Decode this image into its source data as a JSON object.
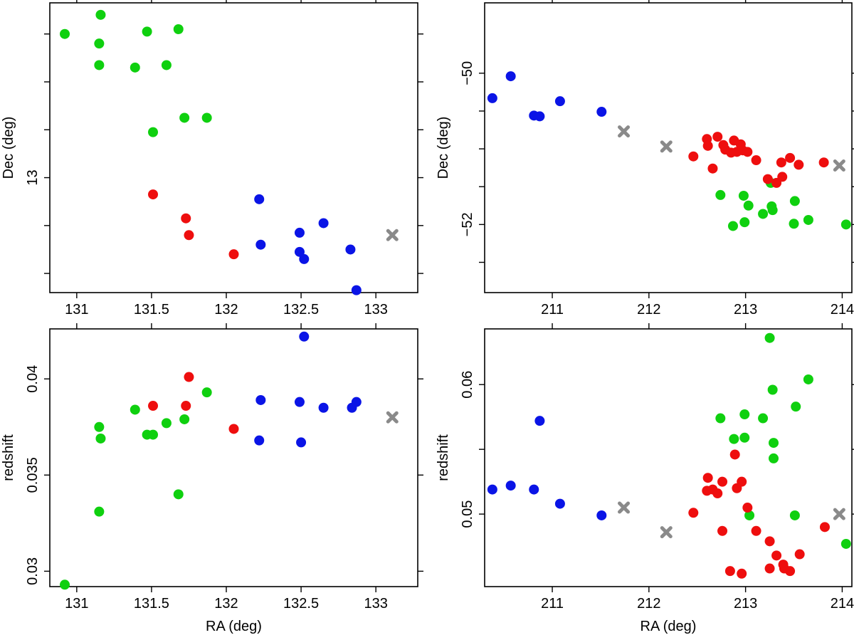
{
  "colors": {
    "blue": "#0a14e6",
    "green": "#0fd00f",
    "red": "#ee0e0e",
    "gray": "#8a8a8a"
  },
  "chart_data": [
    {
      "type": "scatter",
      "xlabel": "",
      "ylabel": "Dec (deg)",
      "xlim": [
        130.82,
        133.28
      ],
      "ylim": [
        12.52,
        13.73
      ],
      "xticks": [
        131,
        131.5,
        132,
        132.5,
        133
      ],
      "xtick_labels": [
        "131",
        "131.5",
        "132",
        "132.5",
        "133"
      ],
      "yticks": [
        12.6,
        12.8,
        13.0,
        13.2,
        13.4,
        13.6
      ],
      "ytick_labels": [
        "",
        "",
        "13",
        "",
        "",
        ""
      ],
      "series": [
        {
          "color": "blue",
          "marker": "circle",
          "points": [
            [
              132.22,
              12.91
            ],
            [
              132.23,
              12.72
            ],
            [
              132.49,
              12.77
            ],
            [
              132.49,
              12.69
            ],
            [
              132.52,
              12.66
            ],
            [
              132.65,
              12.81
            ],
            [
              132.83,
              12.7
            ],
            [
              132.87,
              12.53
            ]
          ]
        },
        {
          "color": "green",
          "marker": "circle",
          "points": [
            [
              130.92,
              13.6
            ],
            [
              131.16,
              13.68
            ],
            [
              131.15,
              13.56
            ],
            [
              131.15,
              13.47
            ],
            [
              131.39,
              13.46
            ],
            [
              131.47,
              13.61
            ],
            [
              131.6,
              13.47
            ],
            [
              131.68,
              13.62
            ],
            [
              131.72,
              13.25
            ],
            [
              131.87,
              13.25
            ],
            [
              131.51,
              13.19
            ]
          ]
        },
        {
          "color": "red",
          "marker": "circle",
          "points": [
            [
              131.51,
              12.93
            ],
            [
              131.73,
              12.83
            ],
            [
              131.75,
              12.76
            ],
            [
              132.05,
              12.68
            ]
          ]
        },
        {
          "color": "gray",
          "marker": "x",
          "points": [
            [
              133.11,
              12.76
            ]
          ]
        }
      ]
    },
    {
      "type": "scatter",
      "xlabel": "",
      "ylabel": "Dec (deg)",
      "xlim": [
        210.3,
        214.1
      ],
      "ylim": [
        -52.9,
        -49.07
      ],
      "xticks": [
        211,
        212,
        213,
        214
      ],
      "xtick_labels": [
        "211",
        "212",
        "213",
        "214"
      ],
      "yticks": [
        -50,
        -50.5,
        -51,
        -51.5,
        -52,
        -52.5
      ],
      "ytick_labels": [
        "−50",
        "",
        "",
        "",
        "−52",
        ""
      ],
      "series": [
        {
          "color": "blue",
          "marker": "circle",
          "points": [
            [
              210.38,
              -50.33
            ],
            [
              210.57,
              -50.04
            ],
            [
              210.81,
              -50.56
            ],
            [
              210.87,
              -50.57
            ],
            [
              211.08,
              -50.37
            ],
            [
              211.51,
              -50.51
            ]
          ]
        },
        {
          "color": "green",
          "marker": "circle",
          "points": [
            [
              212.74,
              -51.61
            ],
            [
              212.98,
              -51.62
            ],
            [
              213.03,
              -51.75
            ],
            [
              213.18,
              -51.86
            ],
            [
              213.27,
              -51.76
            ],
            [
              213.28,
              -51.81
            ],
            [
              213.26,
              -51.45
            ],
            [
              213.51,
              -51.69
            ],
            [
              212.87,
              -52.02
            ],
            [
              212.99,
              -51.97
            ],
            [
              213.5,
              -51.99
            ],
            [
              213.65,
              -51.94
            ],
            [
              214.04,
              -52.0
            ]
          ]
        },
        {
          "color": "red",
          "marker": "circle",
          "points": [
            [
              212.46,
              -51.1
            ],
            [
              212.6,
              -50.87
            ],
            [
              212.61,
              -50.96
            ],
            [
              212.66,
              -51.26
            ],
            [
              212.71,
              -50.84
            ],
            [
              212.77,
              -50.95
            ],
            [
              212.79,
              -51.01
            ],
            [
              212.85,
              -51.05
            ],
            [
              212.88,
              -50.89
            ],
            [
              212.91,
              -51.04
            ],
            [
              212.95,
              -50.94
            ],
            [
              212.97,
              -51.02
            ],
            [
              213.02,
              -51.04
            ],
            [
              213.11,
              -51.15
            ],
            [
              213.23,
              -51.4
            ],
            [
              213.32,
              -51.45
            ],
            [
              213.38,
              -51.37
            ],
            [
              213.37,
              -51.18
            ],
            [
              213.46,
              -51.12
            ],
            [
              213.55,
              -51.21
            ],
            [
              213.81,
              -51.18
            ]
          ]
        },
        {
          "color": "gray",
          "marker": "x",
          "points": [
            [
              211.74,
              -50.77
            ],
            [
              212.18,
              -50.97
            ],
            [
              213.97,
              -51.22
            ]
          ]
        }
      ]
    },
    {
      "type": "scatter",
      "xlabel": "RA (deg)",
      "ylabel": "redshift",
      "xlim": [
        130.82,
        133.28
      ],
      "ylim": [
        0.0292,
        0.0426
      ],
      "xticks": [
        131,
        131.5,
        132,
        132.5,
        133
      ],
      "xtick_labels": [
        "131",
        "131.5",
        "132",
        "132.5",
        "133"
      ],
      "yticks": [
        0.03,
        0.035,
        0.04
      ],
      "ytick_labels": [
        "0.03",
        "0.035",
        "0.04"
      ],
      "series": [
        {
          "color": "blue",
          "marker": "circle",
          "points": [
            [
              132.22,
              0.0368
            ],
            [
              132.23,
              0.0389
            ],
            [
              132.49,
              0.0388
            ],
            [
              132.5,
              0.0367
            ],
            [
              132.52,
              0.0422
            ],
            [
              132.65,
              0.0385
            ],
            [
              132.84,
              0.0385
            ],
            [
              132.87,
              0.0388
            ]
          ]
        },
        {
          "color": "green",
          "marker": "circle",
          "points": [
            [
              130.92,
              0.0293
            ],
            [
              131.15,
              0.0331
            ],
            [
              131.15,
              0.0375
            ],
            [
              131.16,
              0.0369
            ],
            [
              131.39,
              0.0384
            ],
            [
              131.47,
              0.0371
            ],
            [
              131.51,
              0.0371
            ],
            [
              131.6,
              0.0377
            ],
            [
              131.68,
              0.034
            ],
            [
              131.72,
              0.0379
            ],
            [
              131.87,
              0.0393
            ]
          ]
        },
        {
          "color": "red",
          "marker": "circle",
          "points": [
            [
              131.51,
              0.0386
            ],
            [
              131.73,
              0.0386
            ],
            [
              131.75,
              0.0401
            ],
            [
              132.05,
              0.0374
            ]
          ]
        },
        {
          "color": "gray",
          "marker": "x",
          "points": [
            [
              133.11,
              0.038
            ]
          ]
        }
      ]
    },
    {
      "type": "scatter",
      "xlabel": "RA (deg)",
      "ylabel": "redshift",
      "xlim": [
        210.3,
        214.1
      ],
      "ylim": [
        0.0444,
        0.0643
      ],
      "xticks": [
        211,
        212,
        213,
        214
      ],
      "xtick_labels": [
        "211",
        "212",
        "213",
        "214"
      ],
      "yticks": [
        0.05,
        0.055,
        0.06
      ],
      "ytick_labels": [
        "0.05",
        "",
        "0.06"
      ],
      "series": [
        {
          "color": "blue",
          "marker": "circle",
          "points": [
            [
              210.38,
              0.0519
            ],
            [
              210.57,
              0.0522
            ],
            [
              210.81,
              0.0519
            ],
            [
              210.87,
              0.0572
            ],
            [
              211.08,
              0.0508
            ],
            [
              211.51,
              0.0499
            ]
          ]
        },
        {
          "color": "green",
          "marker": "circle",
          "points": [
            [
              212.74,
              0.0574
            ],
            [
              212.88,
              0.0558
            ],
            [
              212.99,
              0.0559
            ],
            [
              212.99,
              0.0577
            ],
            [
              213.04,
              0.0499
            ],
            [
              213.18,
              0.0574
            ],
            [
              213.25,
              0.0636
            ],
            [
              213.28,
              0.0596
            ],
            [
              213.29,
              0.0555
            ],
            [
              213.29,
              0.0543
            ],
            [
              213.51,
              0.0499
            ],
            [
              213.52,
              0.0583
            ],
            [
              213.65,
              0.0604
            ],
            [
              214.04,
              0.0477
            ]
          ]
        },
        {
          "color": "red",
          "marker": "circle",
          "points": [
            [
              212.46,
              0.0501
            ],
            [
              212.6,
              0.0518
            ],
            [
              212.61,
              0.0528
            ],
            [
              212.66,
              0.0519
            ],
            [
              212.71,
              0.0516
            ],
            [
              212.76,
              0.0525
            ],
            [
              212.76,
              0.0487
            ],
            [
              212.84,
              0.0456
            ],
            [
              212.89,
              0.0546
            ],
            [
              212.91,
              0.052
            ],
            [
              212.96,
              0.0454
            ],
            [
              212.96,
              0.0525
            ],
            [
              213.02,
              0.0505
            ],
            [
              213.11,
              0.0487
            ],
            [
              213.25,
              0.0479
            ],
            [
              213.25,
              0.0458
            ],
            [
              213.32,
              0.0468
            ],
            [
              213.39,
              0.0461
            ],
            [
              213.4,
              0.0458
            ],
            [
              213.46,
              0.0456
            ],
            [
              213.56,
              0.0469
            ],
            [
              213.82,
              0.049
            ]
          ]
        },
        {
          "color": "gray",
          "marker": "x",
          "points": [
            [
              211.74,
              0.0505
            ],
            [
              212.18,
              0.0486
            ],
            [
              213.97,
              0.05
            ]
          ]
        }
      ]
    }
  ]
}
